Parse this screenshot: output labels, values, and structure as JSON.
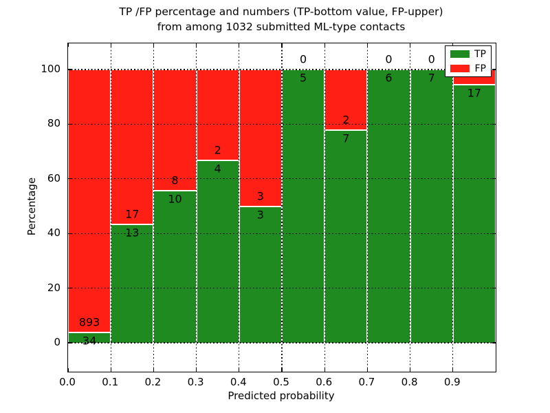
{
  "figure": {
    "title_line1": "TP /FP percentage and numbers (TP-bottom value, FP-upper)",
    "title_line2": "from among 1032 submitted ML-type contacts",
    "xlabel": "Predicted probability",
    "ylabel": "Percentage"
  },
  "legend": {
    "position": "upper right",
    "items": [
      {
        "label": "TP",
        "color": "#1f8a1f"
      },
      {
        "label": "FP",
        "color": "#ff1f14"
      }
    ]
  },
  "colors": {
    "tp_green": "#1f8a1f",
    "fp_red": "#ff1f14",
    "bar_edge": "#ffffff",
    "grid": "#000000",
    "axis": "#000000",
    "background": "#ffffff"
  },
  "chart_data": {
    "type": "bar",
    "stacked": true,
    "normalized_to_percent": true,
    "title": "TP /FP percentage and numbers (TP-bottom value, FP-upper)\nfrom among 1032 submitted ML-type contacts",
    "xlabel": "Predicted probability",
    "ylabel": "Percentage",
    "total_contacts": 1032,
    "bin_edges": [
      0.0,
      0.1,
      0.2,
      0.3,
      0.4,
      0.5,
      0.6,
      0.7,
      0.8,
      0.9,
      1.0
    ],
    "x_tick_labels": [
      "0.0",
      "0.1",
      "0.2",
      "0.3",
      "0.4",
      "0.5",
      "0.6",
      "0.7",
      "0.8",
      "0.9"
    ],
    "y_ticks": [
      0,
      20,
      40,
      60,
      80,
      100
    ],
    "xlim": [
      0.0,
      1.0
    ],
    "data_ylim": [
      0,
      100
    ],
    "grid": "dotted",
    "legend_position": "upper right",
    "series": [
      {
        "name": "TP",
        "color": "#1f8a1f",
        "counts": [
          34,
          13,
          10,
          4,
          3,
          5,
          7,
          6,
          7,
          17
        ]
      },
      {
        "name": "FP",
        "color": "#ff1f14",
        "counts": [
          893,
          17,
          8,
          2,
          3,
          0,
          2,
          0,
          0,
          1
        ]
      }
    ],
    "tp_percent": [
      3.67,
      43.33,
      55.56,
      66.67,
      50.0,
      100.0,
      77.78,
      100.0,
      100.0,
      94.44
    ],
    "bar_labels": {
      "fp": [
        "893",
        "17",
        "8",
        "2",
        "3",
        "0",
        "2",
        "0",
        "0",
        ""
      ],
      "tp": [
        "34",
        "13",
        "10",
        "4",
        "3",
        "5",
        "7",
        "6",
        "7",
        "17"
      ]
    }
  }
}
